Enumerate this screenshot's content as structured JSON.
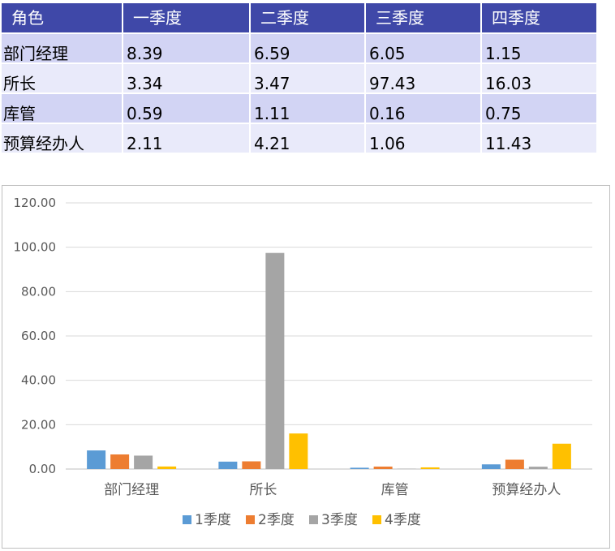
{
  "table": {
    "headers": [
      "角色",
      "一季度",
      "二季度",
      "三季度",
      "四季度"
    ],
    "rows": [
      [
        "部门经理",
        "8.39",
        "6.59",
        "6.05",
        "1.15"
      ],
      [
        "所长",
        "3.34",
        "3.47",
        "97.43",
        "16.03"
      ],
      [
        "库管",
        "0.59",
        "1.11",
        "0.16",
        "0.75"
      ],
      [
        "预算经办人",
        "2.11",
        "4.21",
        "1.06",
        "11.43"
      ]
    ]
  },
  "chart_data": {
    "type": "bar",
    "categories": [
      "部门经理",
      "所长",
      "库管",
      "预算经办人"
    ],
    "series": [
      {
        "name": "1季度",
        "color": "#5b9bd5",
        "values": [
          8.39,
          3.34,
          0.59,
          2.11
        ]
      },
      {
        "name": "2季度",
        "color": "#ed7d31",
        "values": [
          6.59,
          3.47,
          1.11,
          4.21
        ]
      },
      {
        "name": "3季度",
        "color": "#a5a5a5",
        "values": [
          6.05,
          97.43,
          0.16,
          1.06
        ]
      },
      {
        "name": "4季度",
        "color": "#ffc000",
        "values": [
          1.15,
          16.03,
          0.75,
          11.43
        ]
      }
    ],
    "ylim": [
      0,
      120
    ],
    "yticks": [
      "0.00",
      "20.00",
      "40.00",
      "60.00",
      "80.00",
      "100.00",
      "120.00"
    ],
    "grid": true,
    "legend": "bottom"
  }
}
